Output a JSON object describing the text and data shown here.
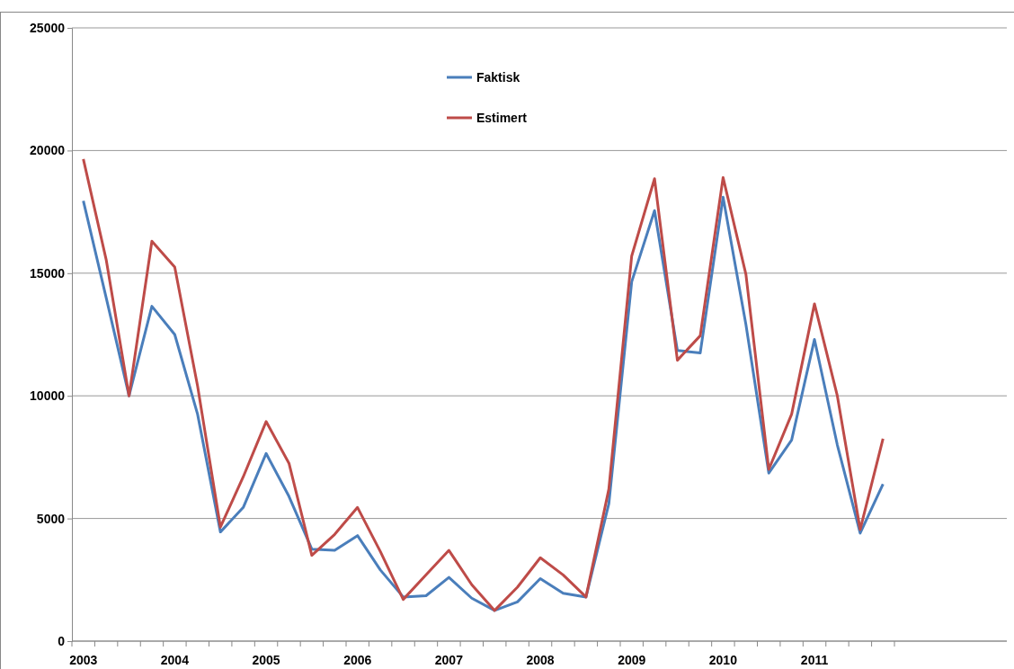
{
  "chart_data": {
    "type": "line",
    "categories": [
      "2003",
      null,
      null,
      null,
      "2004",
      null,
      null,
      null,
      "2005",
      null,
      null,
      null,
      "2006",
      null,
      null,
      null,
      "2007",
      null,
      null,
      null,
      "2008",
      null,
      null,
      null,
      "2009",
      null,
      null,
      null,
      "2010",
      null,
      null,
      null,
      "2011",
      null,
      null,
      null
    ],
    "series": [
      {
        "name": "Faktisk",
        "color": "#4a7ebb",
        "values": [
          17950,
          14000,
          10000,
          13650,
          12500,
          9250,
          4450,
          5450,
          7650,
          5900,
          3750,
          3700,
          4300,
          2900,
          1800,
          1850,
          2600,
          1750,
          1250,
          1600,
          2550,
          1950,
          1800,
          5600,
          14650,
          17550,
          11850,
          11750,
          18100,
          12900,
          6850,
          8200,
          12300,
          8000,
          4400,
          6400
        ]
      },
      {
        "name": "Estimert",
        "color": "#be4b48",
        "values": [
          19650,
          15550,
          10000,
          16300,
          15250,
          10400,
          4650,
          6700,
          8950,
          7250,
          3500,
          4350,
          5450,
          3650,
          1700,
          2700,
          3700,
          2300,
          1250,
          2200,
          3400,
          2700,
          1800,
          6200,
          15700,
          18850,
          11450,
          12450,
          18900,
          14950,
          7000,
          9250,
          13750,
          10000,
          4550,
          8250
        ]
      }
    ],
    "ylim": [
      0,
      25000
    ],
    "yticks": [
      0,
      5000,
      10000,
      15000,
      20000,
      25000
    ],
    "grid": "y",
    "legend": "top",
    "marker": "none",
    "line_style": "solid"
  }
}
